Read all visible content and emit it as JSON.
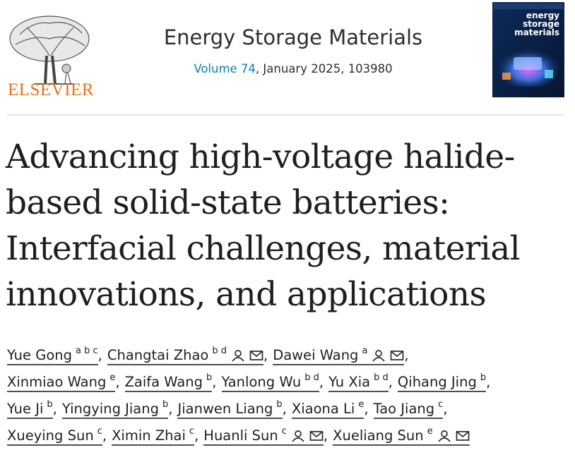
{
  "header": {
    "publisher": "ELSEVIER",
    "journal": "Energy Storage Materials",
    "volume": "Volume 74",
    "citation": ", January 2025, 103980",
    "cover_title": [
      "energy",
      "storage",
      "materials"
    ]
  },
  "title": [
    "Advancing high-voltage halide-",
    "based solid-state batteries:",
    "Interfacial challenges, material",
    "innovations, and applications"
  ],
  "authors": {
    "separator": ",",
    "lines": [
      [
        {
          "name": "Yue Gong",
          "sup": "a b c",
          "contact": false
        },
        {
          "name": "Changtai Zhao",
          "sup": "b d",
          "contact": true
        },
        {
          "name": "Dawei Wang",
          "sup": "a",
          "contact": true
        }
      ],
      [
        {
          "name": "Xinmiao Wang",
          "sup": "e",
          "contact": false
        },
        {
          "name": "Zaifa Wang",
          "sup": "b",
          "contact": false
        },
        {
          "name": "Yanlong Wu",
          "sup": "b d",
          "contact": false
        },
        {
          "name": "Yu Xia",
          "sup": "b d",
          "contact": false
        },
        {
          "name": "Qihang Jing",
          "sup": "b",
          "contact": false
        }
      ],
      [
        {
          "name": "Yue Ji",
          "sup": "b",
          "contact": false
        },
        {
          "name": "Yingying Jiang",
          "sup": "b",
          "contact": false
        },
        {
          "name": "Jianwen Liang",
          "sup": "b",
          "contact": false
        },
        {
          "name": "Xiaona Li",
          "sup": "e",
          "contact": false
        },
        {
          "name": "Tao Jiang",
          "sup": "c",
          "contact": false
        }
      ],
      [
        {
          "name": "Xueying Sun",
          "sup": "c",
          "contact": false
        },
        {
          "name": "Ximin Zhai",
          "sup": "c",
          "contact": false
        },
        {
          "name": "Huanli Sun",
          "sup": "c",
          "contact": true
        },
        {
          "name": "Xueliang Sun",
          "sup": "e",
          "contact": true
        }
      ]
    ]
  }
}
